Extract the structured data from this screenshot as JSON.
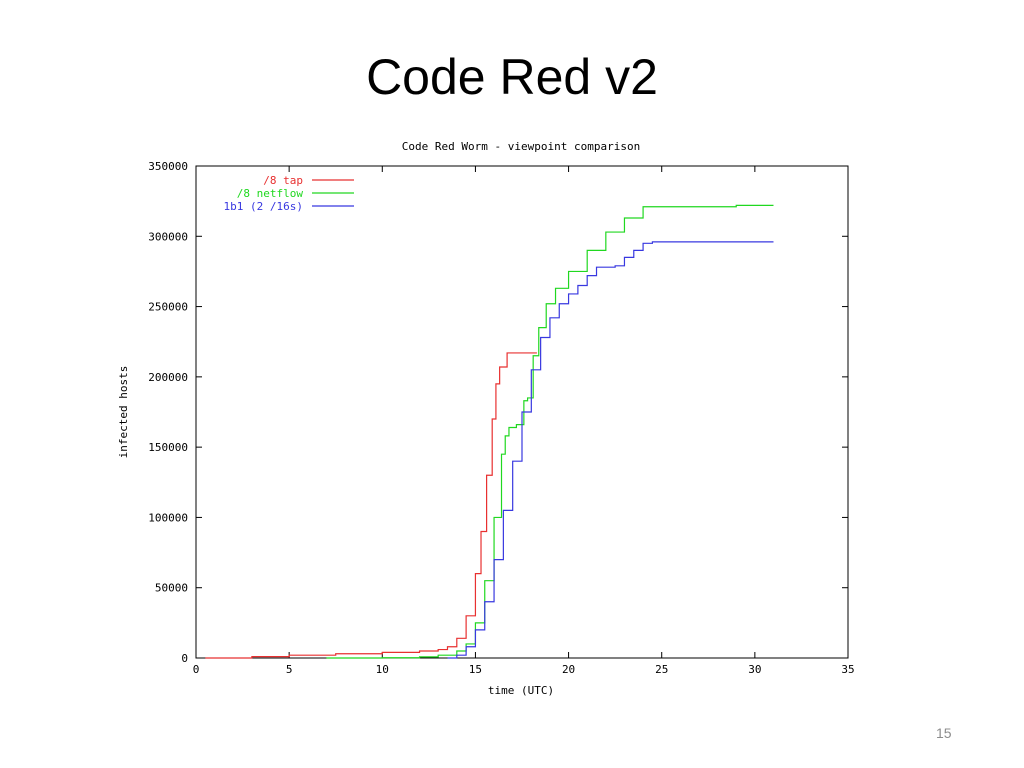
{
  "slide": {
    "title": "Code Red v2",
    "page_number": "15"
  },
  "chart_data": {
    "type": "line",
    "title": "Code Red Worm - viewpoint comparison",
    "xlabel": "time (UTC)",
    "ylabel": "infected hosts",
    "xlim": [
      0,
      35
    ],
    "ylim": [
      0,
      350000
    ],
    "xticks": [
      0,
      5,
      10,
      15,
      20,
      25,
      30,
      35
    ],
    "yticks": [
      0,
      50000,
      100000,
      150000,
      200000,
      250000,
      300000,
      350000
    ],
    "legend_position": "top-left",
    "grid": false,
    "series": [
      {
        "name": "/8 tap",
        "color": "#e83030",
        "x": [
          0.5,
          3,
          5,
          7.5,
          10,
          12,
          13,
          13.5,
          14,
          14.5,
          15,
          15.3,
          15.6,
          15.9,
          16.1,
          16.3,
          16.5,
          16.7,
          17.5,
          18,
          18.3
        ],
        "y": [
          0,
          1000,
          2000,
          3000,
          4000,
          5000,
          6000,
          8000,
          14000,
          30000,
          60000,
          90000,
          130000,
          170000,
          195000,
          207000,
          207000,
          217000,
          217000,
          217000,
          217000
        ]
      },
      {
        "name": "/8 netflow",
        "color": "#20d820",
        "x": [
          7,
          10,
          12,
          13,
          14,
          14.5,
          15,
          15.5,
          16,
          16.4,
          16.6,
          16.8,
          17.2,
          17.6,
          17.8,
          18.1,
          18.4,
          18.8,
          19.3,
          20,
          21,
          22,
          23,
          24,
          25,
          27,
          29,
          31
        ],
        "y": [
          0,
          200,
          800,
          2000,
          5000,
          10000,
          25000,
          55000,
          100000,
          145000,
          158000,
          164000,
          166000,
          183000,
          185000,
          215000,
          235000,
          252000,
          263000,
          275000,
          290000,
          303000,
          313000,
          321000,
          321000,
          321000,
          322000,
          322000
        ]
      },
      {
        "name": "1b1 (2 /16s)",
        "color": "#3838e0",
        "x": [
          13.5,
          14,
          14.5,
          15,
          15.5,
          16,
          16.5,
          17,
          17.5,
          18,
          18.5,
          19,
          19.5,
          20,
          20.5,
          21,
          21.5,
          22,
          22.5,
          23,
          23.5,
          24,
          24.5,
          26,
          28,
          31
        ],
        "y": [
          0,
          2000,
          8000,
          20000,
          40000,
          70000,
          105000,
          140000,
          175000,
          205000,
          228000,
          242000,
          252000,
          259000,
          265000,
          272000,
          278000,
          278000,
          279000,
          285000,
          290000,
          295000,
          296000,
          296000,
          296000,
          296000
        ]
      }
    ]
  }
}
